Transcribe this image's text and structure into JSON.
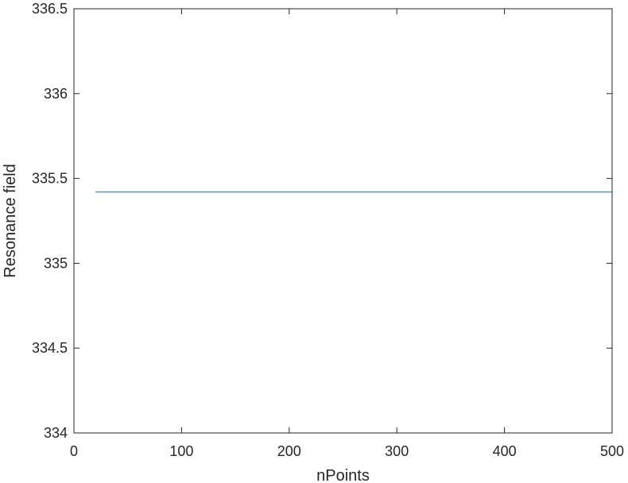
{
  "chart_data": {
    "type": "line",
    "title": "",
    "xlabel": "nPoints",
    "ylabel": "Resonance field",
    "xlim": [
      0,
      500
    ],
    "ylim": [
      334,
      336.5
    ],
    "xticks": [
      0,
      100,
      200,
      300,
      400,
      500
    ],
    "xtick_labels": [
      "0",
      "100",
      "200",
      "300",
      "400",
      "500"
    ],
    "yticks": [
      334,
      334.5,
      335,
      335.5,
      336,
      336.5
    ],
    "ytick_labels": [
      "334",
      "334.5",
      "335",
      "335.5",
      "336",
      "336.5"
    ],
    "grid": false,
    "legend": "none",
    "series": [
      {
        "color": "#0072bd",
        "x": [
          20,
          500
        ],
        "y": [
          335.42,
          335.42
        ]
      }
    ]
  }
}
